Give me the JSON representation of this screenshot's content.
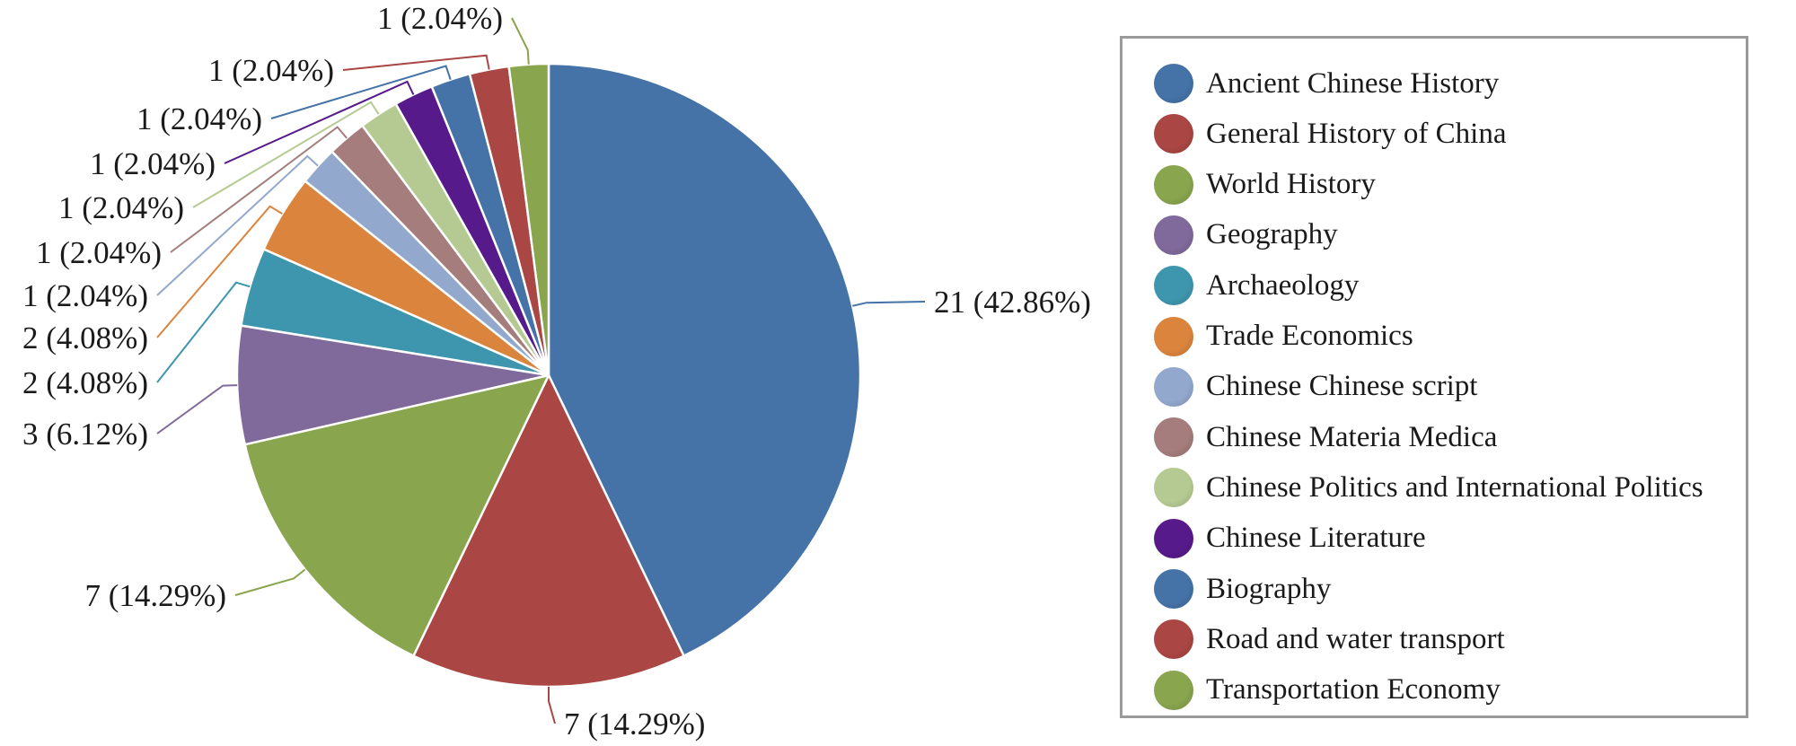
{
  "chart_data": {
    "type": "pie",
    "title": "",
    "total": 49,
    "slices": [
      {
        "name": "Ancient Chinese History",
        "value": 21,
        "label": "21 (42.86%)",
        "color": "#4572A7"
      },
      {
        "name": "General History of China",
        "value": 7,
        "label": "7 (14.29%)",
        "color": "#AA4643"
      },
      {
        "name": "World History",
        "value": 7,
        "label": "7 (14.29%)",
        "color": "#89A54E"
      },
      {
        "name": "Geography",
        "value": 3,
        "label": "3 (6.12%)",
        "color": "#80699B"
      },
      {
        "name": "Archaeology",
        "value": 2,
        "label": "2 (4.08%)",
        "color": "#3D96AE"
      },
      {
        "name": "Trade Economics",
        "value": 2,
        "label": "2 (4.08%)",
        "color": "#DB843D"
      },
      {
        "name": "Chinese Chinese script",
        "value": 1,
        "label": "1 (2.04%)",
        "color": "#92A8CD"
      },
      {
        "name": "Chinese Materia Medica",
        "value": 1,
        "label": "1 (2.04%)",
        "color": "#A47D7C"
      },
      {
        "name": "Chinese Politics and International Politics",
        "value": 1,
        "label": "1 (2.04%)",
        "color": "#B5CA92"
      },
      {
        "name": "Chinese Literature",
        "value": 1,
        "label": "1 (2.04%)",
        "color": "#561A8B"
      },
      {
        "name": "Biography",
        "value": 1,
        "label": "1 (2.04%)",
        "color": "#4572A7"
      },
      {
        "name": "Road and water transport",
        "value": 1,
        "label": "1 (2.04%)",
        "color": "#AA4643"
      },
      {
        "name": "Transportation Economy",
        "value": 1,
        "label": "1 (2.04%)",
        "color": "#89A54E"
      }
    ],
    "legend_position": "right",
    "start_angle_deg": 0,
    "direction": "clockwise"
  }
}
